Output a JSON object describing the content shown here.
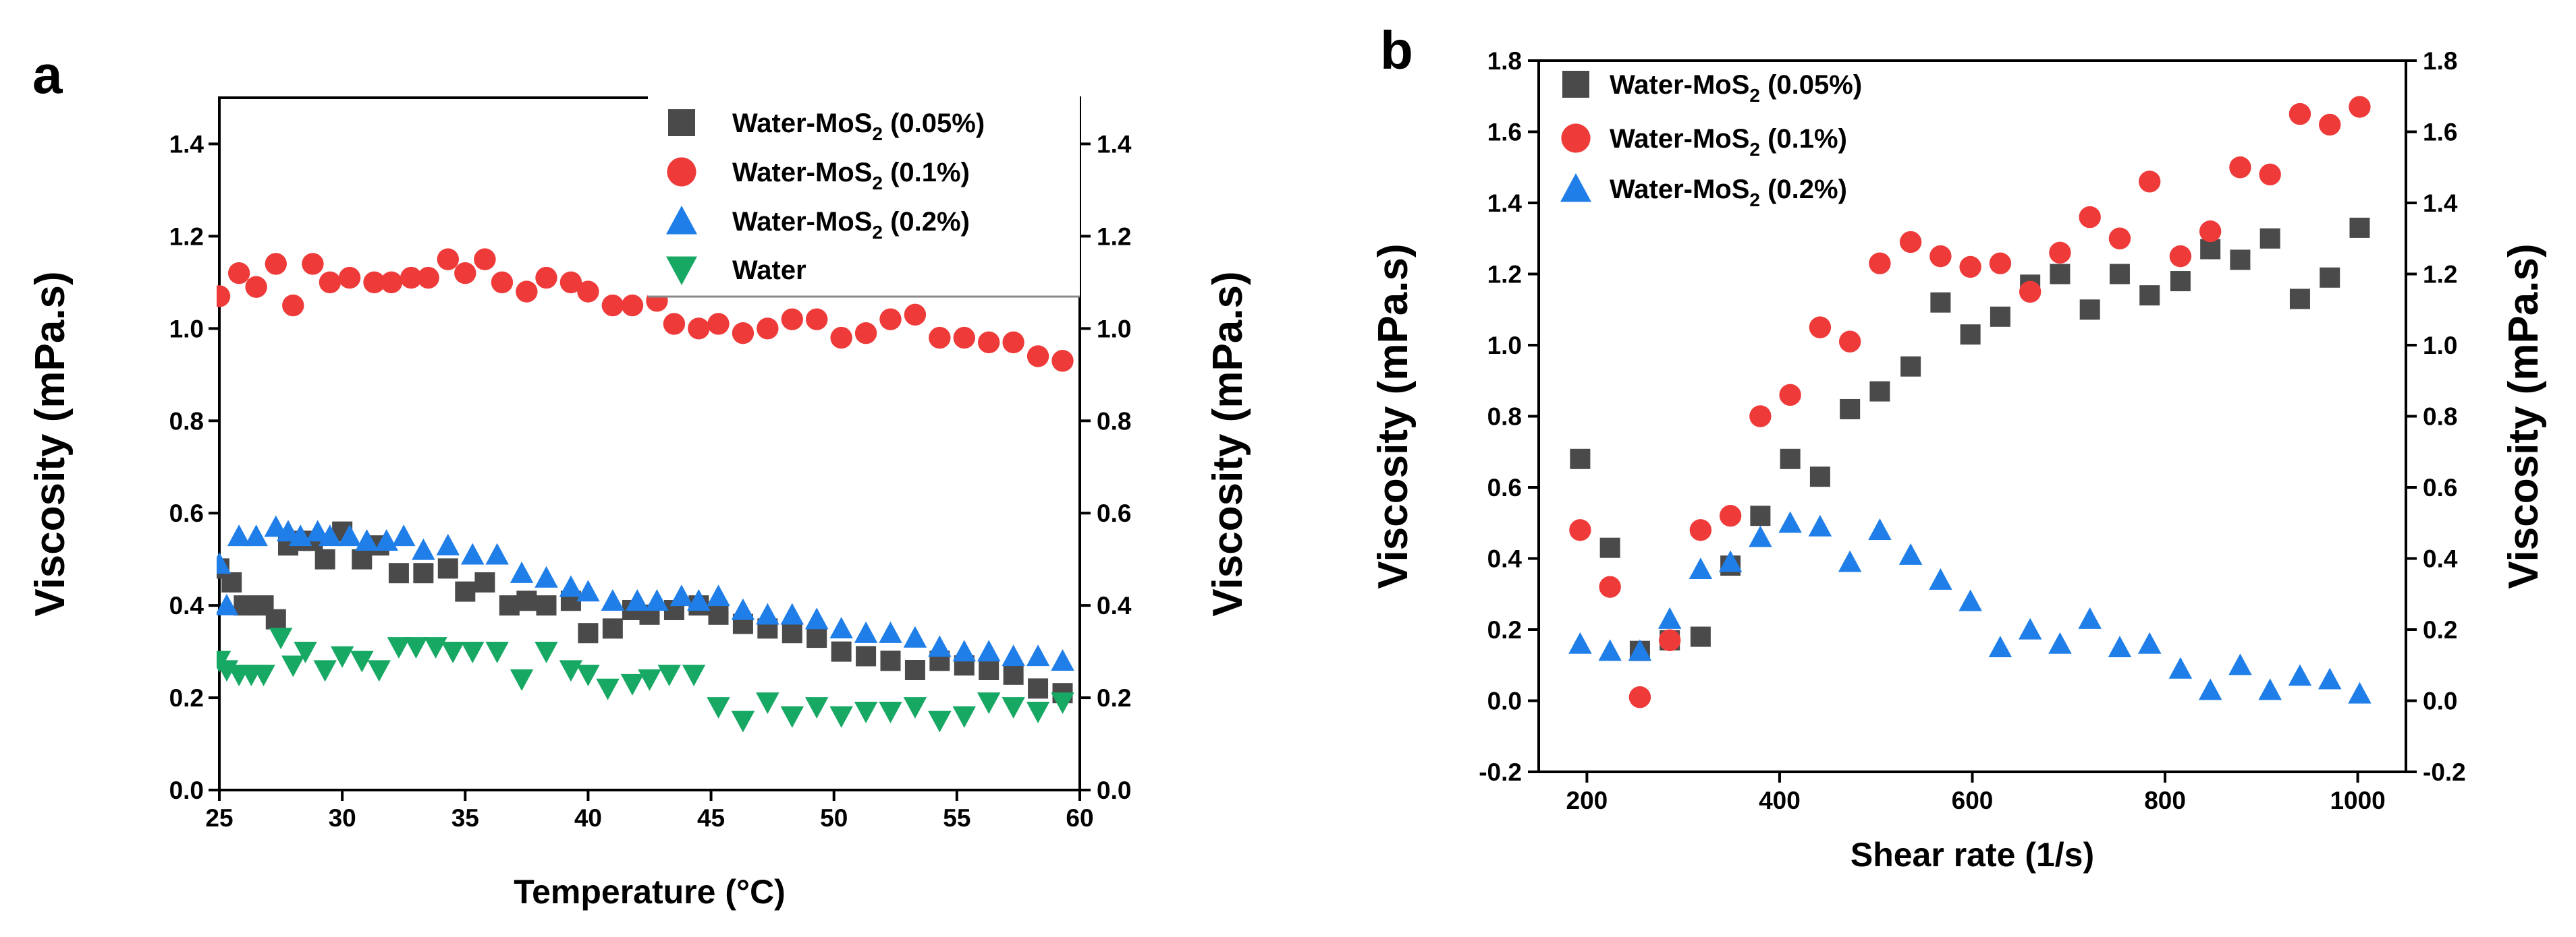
{
  "panels": [
    {
      "letter": "a"
    },
    {
      "letter": "b"
    }
  ],
  "chart_data": [
    {
      "panel": "a",
      "type": "scatter",
      "xlabel": "Temperature (°C)",
      "ylabel": "Viscosity (mPa.s)",
      "ylabel_right": "Viscosity (mPa.s)",
      "xlim": [
        25,
        60
      ],
      "ylim": [
        0.0,
        1.5
      ],
      "xticks": [
        25,
        30,
        35,
        40,
        45,
        50,
        55,
        60
      ],
      "xtick_labels": [
        "25",
        "30",
        "35",
        "40",
        "45",
        "50",
        "55",
        "60"
      ],
      "yticks": [
        0.0,
        0.2,
        0.4,
        0.6,
        0.8,
        1.0,
        1.2,
        1.4
      ],
      "ytick_labels": [
        "0.0",
        "0.2",
        "0.4",
        "0.6",
        "0.8",
        "1.0",
        "1.2",
        "1.4"
      ],
      "grid": false,
      "legend_position": "top-right",
      "series": [
        {
          "name": "Water-MoS2 (0.05%)",
          "label_main": "Water-MoS",
          "label_sub": "2",
          "label_tail": " (0.05%)",
          "marker": "square",
          "color": "#4a4a4a",
          "x": [
            25,
            25.5,
            26,
            26.8,
            27.3,
            27.8,
            28.3,
            28.8,
            29.3,
            30,
            30.8,
            31.5,
            32.3,
            33.3,
            34.3,
            35,
            35.8,
            36.8,
            37.5,
            38.3,
            39.3,
            40,
            41,
            41.8,
            42.5,
            43.5,
            44.5,
            45.3,
            46.3,
            47.3,
            48.3,
            49.3,
            50.3,
            51.3,
            52.3,
            53.3,
            54.3,
            55.3,
            56.3,
            57.3,
            58.3,
            59.3
          ],
          "y": [
            0.48,
            0.45,
            0.4,
            0.4,
            0.37,
            0.53,
            0.54,
            0.54,
            0.5,
            0.56,
            0.5,
            0.53,
            0.47,
            0.47,
            0.48,
            0.43,
            0.45,
            0.4,
            0.41,
            0.4,
            0.41,
            0.34,
            0.35,
            0.39,
            0.38,
            0.39,
            0.4,
            0.38,
            0.36,
            0.35,
            0.34,
            0.33,
            0.3,
            0.29,
            0.28,
            0.26,
            0.28,
            0.27,
            0.26,
            0.25,
            0.22,
            0.21
          ]
        },
        {
          "name": "Water-MoS2 (0.1%)",
          "label_main": "Water-MoS",
          "label_sub": "2",
          "label_tail": " (0.1%)",
          "marker": "circle",
          "color": "#ef3a3a",
          "x": [
            25,
            25.8,
            26.5,
            27.3,
            28,
            28.8,
            29.5,
            30.3,
            31.3,
            32,
            32.8,
            33.5,
            34.3,
            35,
            35.8,
            36.5,
            37.5,
            38.3,
            39.3,
            40,
            41,
            41.8,
            42.8,
            43.5,
            44.5,
            45.3,
            46.3,
            47.3,
            48.3,
            49.3,
            50.3,
            51.3,
            52.3,
            53.3,
            54.3,
            55.3,
            56.3,
            57.3,
            58.3,
            59.3
          ],
          "y": [
            1.07,
            1.12,
            1.09,
            1.14,
            1.05,
            1.14,
            1.1,
            1.11,
            1.1,
            1.1,
            1.11,
            1.11,
            1.15,
            1.12,
            1.15,
            1.1,
            1.08,
            1.11,
            1.1,
            1.08,
            1.05,
            1.05,
            1.06,
            1.01,
            1.0,
            1.01,
            0.99,
            1.0,
            1.02,
            1.02,
            0.98,
            0.99,
            1.02,
            1.03,
            0.98,
            0.98,
            0.97,
            0.97,
            0.94,
            0.93
          ]
        },
        {
          "name": "Water-MoS2 (0.2%)",
          "label_main": "Water-MoS",
          "label_sub": "2",
          "label_tail": " (0.2%)",
          "marker": "triangle-up",
          "color": "#1f7ee8",
          "x": [
            25,
            25.3,
            25.8,
            26.5,
            27.3,
            27.8,
            28.3,
            29,
            29.5,
            30.3,
            31,
            31.8,
            32.5,
            33.3,
            34.3,
            35.3,
            36.3,
            37.3,
            38.3,
            39.3,
            40,
            41,
            42,
            42.8,
            43.8,
            44.5,
            45.3,
            46.3,
            47.3,
            48.3,
            49.3,
            50.3,
            51.3,
            52.3,
            53.3,
            54.3,
            55.3,
            56.3,
            57.3,
            58.3,
            59.3
          ],
          "y": [
            0.49,
            0.4,
            0.55,
            0.55,
            0.57,
            0.56,
            0.55,
            0.56,
            0.55,
            0.55,
            0.54,
            0.54,
            0.55,
            0.52,
            0.53,
            0.51,
            0.51,
            0.47,
            0.46,
            0.44,
            0.43,
            0.41,
            0.41,
            0.41,
            0.42,
            0.41,
            0.42,
            0.39,
            0.38,
            0.38,
            0.37,
            0.35,
            0.34,
            0.34,
            0.33,
            0.31,
            0.3,
            0.3,
            0.29,
            0.29,
            0.28
          ]
        },
        {
          "name": "Water",
          "label_main": "Water",
          "label_sub": "",
          "label_tail": "",
          "marker": "triangle-down",
          "color": "#17a864",
          "x": [
            25,
            25.3,
            25.8,
            26.3,
            26.8,
            27.5,
            28,
            28.5,
            29.3,
            30,
            30.8,
            31.5,
            32.3,
            33,
            33.8,
            34.5,
            35.3,
            36.3,
            37.3,
            38.3,
            39.3,
            40,
            40.8,
            41.8,
            42.5,
            43.3,
            44.3,
            45.3,
            46.3,
            47.3,
            48.3,
            49.3,
            50.3,
            51.3,
            52.3,
            53.3,
            54.3,
            55.3,
            56.3,
            57.3,
            58.3,
            59.3
          ],
          "y": [
            0.28,
            0.26,
            0.25,
            0.25,
            0.25,
            0.33,
            0.27,
            0.3,
            0.26,
            0.29,
            0.28,
            0.26,
            0.31,
            0.31,
            0.31,
            0.3,
            0.3,
            0.3,
            0.24,
            0.3,
            0.26,
            0.25,
            0.22,
            0.23,
            0.24,
            0.25,
            0.25,
            0.18,
            0.15,
            0.19,
            0.16,
            0.18,
            0.16,
            0.17,
            0.17,
            0.18,
            0.15,
            0.16,
            0.19,
            0.18,
            0.17,
            0.19
          ]
        }
      ]
    },
    {
      "panel": "b",
      "type": "scatter",
      "xlabel": "Shear rate  (1/s)",
      "ylabel": "Viscosity (mPa.s)",
      "ylabel_right": "Viscosity (mPa.s)",
      "xlim": [
        150,
        1050
      ],
      "ylim": [
        -0.2,
        1.8
      ],
      "xticks": [
        200,
        400,
        600,
        800,
        1000
      ],
      "xtick_labels": [
        "200",
        "400",
        "600",
        "800",
        "1000"
      ],
      "yticks": [
        -0.2,
        0.0,
        0.2,
        0.4,
        0.6,
        0.8,
        1.0,
        1.2,
        1.4,
        1.6,
        1.8
      ],
      "ytick_labels": [
        "-0.2",
        "0.0",
        "0.2",
        "0.4",
        "0.6",
        "0.8",
        "1.0",
        "1.2",
        "1.4",
        "1.6",
        "1.8"
      ],
      "grid": false,
      "legend_position": "top-left",
      "series": [
        {
          "name": "Water-MoS2 (0.05%)",
          "label_main": "Water-MoS",
          "label_sub": "2",
          "label_tail": " (0.05%)",
          "marker": "square",
          "color": "#4a4a4a",
          "x": [
            193,
            224,
            255,
            286,
            318,
            349,
            380,
            411,
            442,
            473,
            504,
            536,
            567,
            598,
            629,
            660,
            691,
            722,
            753,
            784,
            816,
            847,
            878,
            909,
            940,
            971,
            1002
          ],
          "y": [
            0.68,
            0.43,
            0.14,
            0.17,
            0.18,
            0.38,
            0.52,
            0.68,
            0.63,
            0.82,
            0.87,
            0.94,
            1.12,
            1.03,
            1.08,
            1.17,
            1.2,
            1.1,
            1.2,
            1.14,
            1.18,
            1.27,
            1.24,
            1.3,
            1.13,
            1.19,
            1.33
          ]
        },
        {
          "name": "Water-MoS2 (0.1%)",
          "label_main": "Water-MoS",
          "label_sub": "2",
          "label_tail": " (0.1%)",
          "marker": "circle",
          "color": "#ef3a3a",
          "x": [
            193,
            224,
            255,
            286,
            318,
            349,
            380,
            411,
            442,
            473,
            504,
            536,
            567,
            598,
            629,
            660,
            691,
            722,
            753,
            784,
            816,
            847,
            878,
            909,
            940,
            971,
            1002
          ],
          "y": [
            0.48,
            0.32,
            0.01,
            0.17,
            0.48,
            0.52,
            0.8,
            0.86,
            1.05,
            1.01,
            1.23,
            1.29,
            1.25,
            1.22,
            1.23,
            1.15,
            1.26,
            1.36,
            1.3,
            1.46,
            1.25,
            1.32,
            1.5,
            1.48,
            1.65,
            1.62,
            1.67
          ]
        },
        {
          "name": "Water-MoS2 (0.2%)",
          "label_main": "Water-MoS",
          "label_sub": "2",
          "label_tail": " (0.2%)",
          "marker": "triangle-up",
          "color": "#1f7ee8",
          "x": [
            193,
            224,
            255,
            286,
            318,
            349,
            380,
            411,
            442,
            473,
            504,
            536,
            567,
            598,
            629,
            660,
            691,
            722,
            753,
            784,
            816,
            847,
            878,
            909,
            940,
            971,
            1002
          ],
          "y": [
            0.16,
            0.14,
            0.14,
            0.23,
            0.37,
            0.39,
            0.46,
            0.5,
            0.49,
            0.39,
            0.48,
            0.41,
            0.34,
            0.28,
            0.15,
            0.2,
            0.16,
            0.23,
            0.15,
            0.16,
            0.09,
            0.03,
            0.1,
            0.03,
            0.07,
            0.06,
            0.02
          ]
        }
      ]
    }
  ]
}
